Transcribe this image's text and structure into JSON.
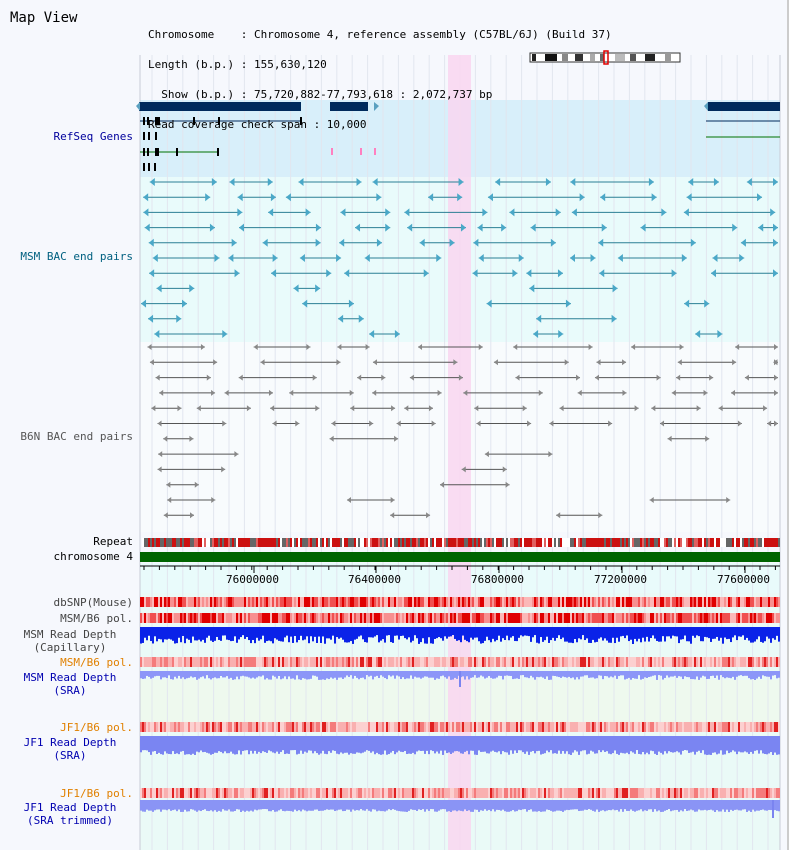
{
  "header": {
    "title": "Map View",
    "info_lines": [
      "Chromosome    : Chromosome 4, reference assembly (C57BL/6J) (Build 37)",
      "Length (b.p.) : 155,630,120",
      "  Show (b.p.) : 75,720,882-77,793,618 : 2,072,737 bp",
      "Read coverage check span : 10,000"
    ]
  },
  "tracks": {
    "refseq": "RefSeq Genes",
    "msm_bac": "MSM BAC end pairs",
    "b6n_bac": "B6N BAC end pairs",
    "repeat": "Repeat",
    "chromosome": "chromosome 4",
    "dbsnp": "dbSNP(Mouse)",
    "msm_b6_pol_1": "MSM/B6 pol.",
    "msm_read_depth_cap": [
      "MSM Read Depth",
      "(Capillary)"
    ],
    "msm_b6_pol_2": "MSM/B6 pol.",
    "msm_read_depth_sra": [
      "MSM Read Depth",
      "(SRA)"
    ],
    "jf1_b6_pol_1": "JF1/B6 pol.",
    "jf1_read_depth_sra": [
      "JF1 Read Depth",
      "(SRA)"
    ],
    "jf1_b6_pol_2": "JF1/B6 pol.",
    "jf1_read_depth_trimmed": [
      "JF1 Read Depth",
      "(SRA trimmed)"
    ]
  },
  "axis": {
    "ticks": [
      "76000000",
      "76400000",
      "76800000",
      "77200000",
      "77600000"
    ]
  },
  "colors": {
    "refseq_label": "#00009c",
    "msm_label": "#006080",
    "b6n_label": "#555555",
    "pol_orange": "#e08000",
    "depth_blue": "#0000b0",
    "highlight": "#f9d6f0"
  }
}
